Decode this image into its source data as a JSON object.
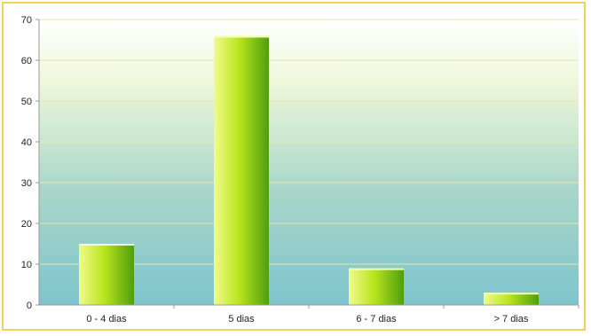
{
  "chart_data": {
    "type": "bar",
    "title": "",
    "xlabel": "",
    "ylabel": "",
    "categories": [
      "0 - 4 dias",
      "5 dias",
      "6 - 7 dias",
      "> 7 dias"
    ],
    "values": [
      15,
      66,
      9,
      3
    ],
    "ylim": [
      0,
      70
    ],
    "yticks": [
      0,
      10,
      20,
      30,
      40,
      50,
      60,
      70
    ],
    "grid": true,
    "legend": "none",
    "colors": {
      "bar_light": "#f2fa8c",
      "bar_mid": "#b9e61e",
      "bar_dark": "#4f9e0c",
      "plot_top": "#ffffff",
      "plot_bottom": "#7ec4cc",
      "gridline": "#e3e8a8",
      "frame": "#f0d25a",
      "axis": "#9a9a9a"
    }
  }
}
